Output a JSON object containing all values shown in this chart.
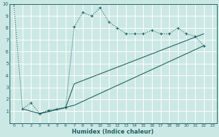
{
  "xlabel": "Humidex (Indice chaleur)",
  "xlim": [
    -0.5,
    23.5
  ],
  "ylim": [
    0,
    10
  ],
  "xticks": [
    0,
    1,
    2,
    3,
    4,
    5,
    6,
    7,
    8,
    9,
    10,
    11,
    12,
    13,
    14,
    15,
    16,
    17,
    18,
    19,
    20,
    21,
    22,
    23
  ],
  "yticks": [
    1,
    2,
    3,
    4,
    5,
    6,
    7,
    8,
    9,
    10
  ],
  "bg_color": "#cce8e4",
  "line_color": "#1a6060",
  "grid_color": "#b8d8d4",
  "series1_x": [
    0,
    1,
    2,
    3,
    4,
    5,
    6,
    7,
    8,
    9,
    10,
    11,
    12,
    13,
    14,
    15,
    16,
    17,
    18,
    19,
    20,
    21,
    22
  ],
  "series1_y": [
    10,
    1.2,
    1.7,
    0.8,
    1.1,
    1.2,
    1.3,
    8.1,
    9.3,
    9.0,
    9.7,
    8.5,
    8.0,
    7.5,
    7.5,
    7.5,
    7.8,
    7.5,
    7.5,
    8.0,
    7.5,
    7.3,
    6.5
  ],
  "series2_x": [
    1,
    3,
    6,
    7,
    22
  ],
  "series2_y": [
    1.2,
    0.8,
    1.3,
    3.3,
    7.5
  ],
  "series3_x": [
    3,
    7,
    22
  ],
  "series3_y": [
    0.8,
    1.5,
    6.5
  ]
}
